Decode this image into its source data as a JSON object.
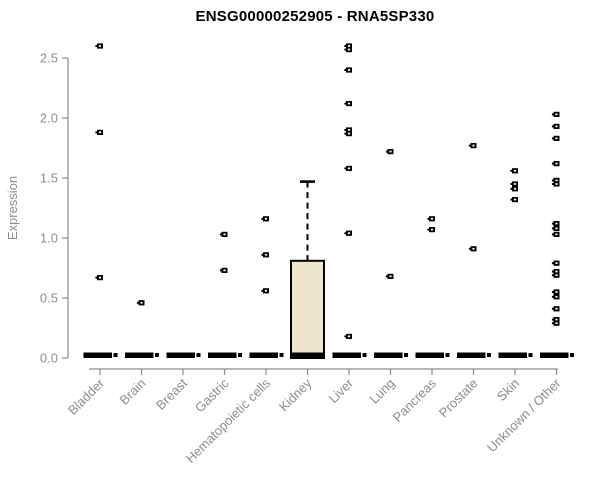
{
  "chart_data": {
    "type": "boxplot",
    "title": "ENSG00000252905 - RNA5SP330",
    "ylabel": "Expression",
    "xlabel": "",
    "ylim": [
      0,
      2.5
    ],
    "yticks": [
      0,
      0.5,
      1,
      1.5,
      2,
      2.5
    ],
    "grid": false,
    "legend_position": "none",
    "categories": [
      "Bladder",
      "Brain",
      "Breast",
      "Gastric",
      "Hematopoietic cells",
      "Kidney",
      "Liver",
      "Lung",
      "Pancreas",
      "Prostate",
      "Skin",
      "Unknown / Other"
    ],
    "boxes": [
      {
        "category": "Bladder",
        "q1": 0,
        "median": 0,
        "q3": 0,
        "whisker_low": 0,
        "whisker_high": 0,
        "outliers": [
          2.6,
          1.88,
          0.67
        ]
      },
      {
        "category": "Brain",
        "q1": 0,
        "median": 0,
        "q3": 0,
        "whisker_low": 0,
        "whisker_high": 0,
        "outliers": [
          0.46
        ]
      },
      {
        "category": "Breast",
        "q1": 0,
        "median": 0,
        "q3": 0,
        "whisker_low": 0,
        "whisker_high": 0,
        "outliers": []
      },
      {
        "category": "Gastric",
        "q1": 0,
        "median": 0,
        "q3": 0,
        "whisker_low": 0,
        "whisker_high": 0,
        "outliers": [
          1.03,
          0.73
        ]
      },
      {
        "category": "Hematopoietic cells",
        "q1": 0,
        "median": 0,
        "q3": 0,
        "whisker_low": 0,
        "whisker_high": 0,
        "outliers": [
          1.16,
          0.86,
          0.56
        ]
      },
      {
        "category": "Kidney",
        "q1": 0,
        "median": 0,
        "q3": 0.81,
        "whisker_low": 0,
        "whisker_high": 1.47,
        "outliers": []
      },
      {
        "category": "Liver",
        "q1": 0,
        "median": 0,
        "q3": 0,
        "whisker_low": 0,
        "whisker_high": 0,
        "outliers": [
          2.6,
          2.57,
          2.4,
          2.12,
          1.9,
          1.87,
          1.58,
          1.04,
          0.18
        ]
      },
      {
        "category": "Lung",
        "q1": 0,
        "median": 0,
        "q3": 0,
        "whisker_low": 0,
        "whisker_high": 0,
        "outliers": [
          1.72,
          0.68
        ]
      },
      {
        "category": "Pancreas",
        "q1": 0,
        "median": 0,
        "q3": 0,
        "whisker_low": 0,
        "whisker_high": 0,
        "outliers": [
          1.16,
          1.07
        ]
      },
      {
        "category": "Prostate",
        "q1": 0,
        "median": 0,
        "q3": 0,
        "whisker_low": 0,
        "whisker_high": 0,
        "outliers": [
          1.77,
          0.91
        ]
      },
      {
        "category": "Skin",
        "q1": 0,
        "median": 0,
        "q3": 0,
        "whisker_low": 0,
        "whisker_high": 0,
        "outliers": [
          1.56,
          1.45,
          1.41,
          1.32
        ]
      },
      {
        "category": "Unknown / Other",
        "q1": 0,
        "median": 0,
        "q3": 0,
        "whisker_low": 0,
        "whisker_high": 0,
        "outliers": [
          2.03,
          1.93,
          1.83,
          1.62,
          1.48,
          1.45,
          1.12,
          1.08,
          1.03,
          0.79,
          0.72,
          0.69,
          0.55,
          0.51,
          0.41,
          0.32,
          0.29
        ]
      }
    ],
    "colors": {
      "box_fill": "#ede6cc",
      "box_stroke": "#000000",
      "median": "#000000",
      "whisker": "#000000",
      "outlier": "#000000",
      "axis_line": "#8c8c8c",
      "tick_label": "#8c8c8c",
      "axis_title": "#8c8c8c",
      "title": "#000000",
      "background": "#ffffff"
    }
  }
}
